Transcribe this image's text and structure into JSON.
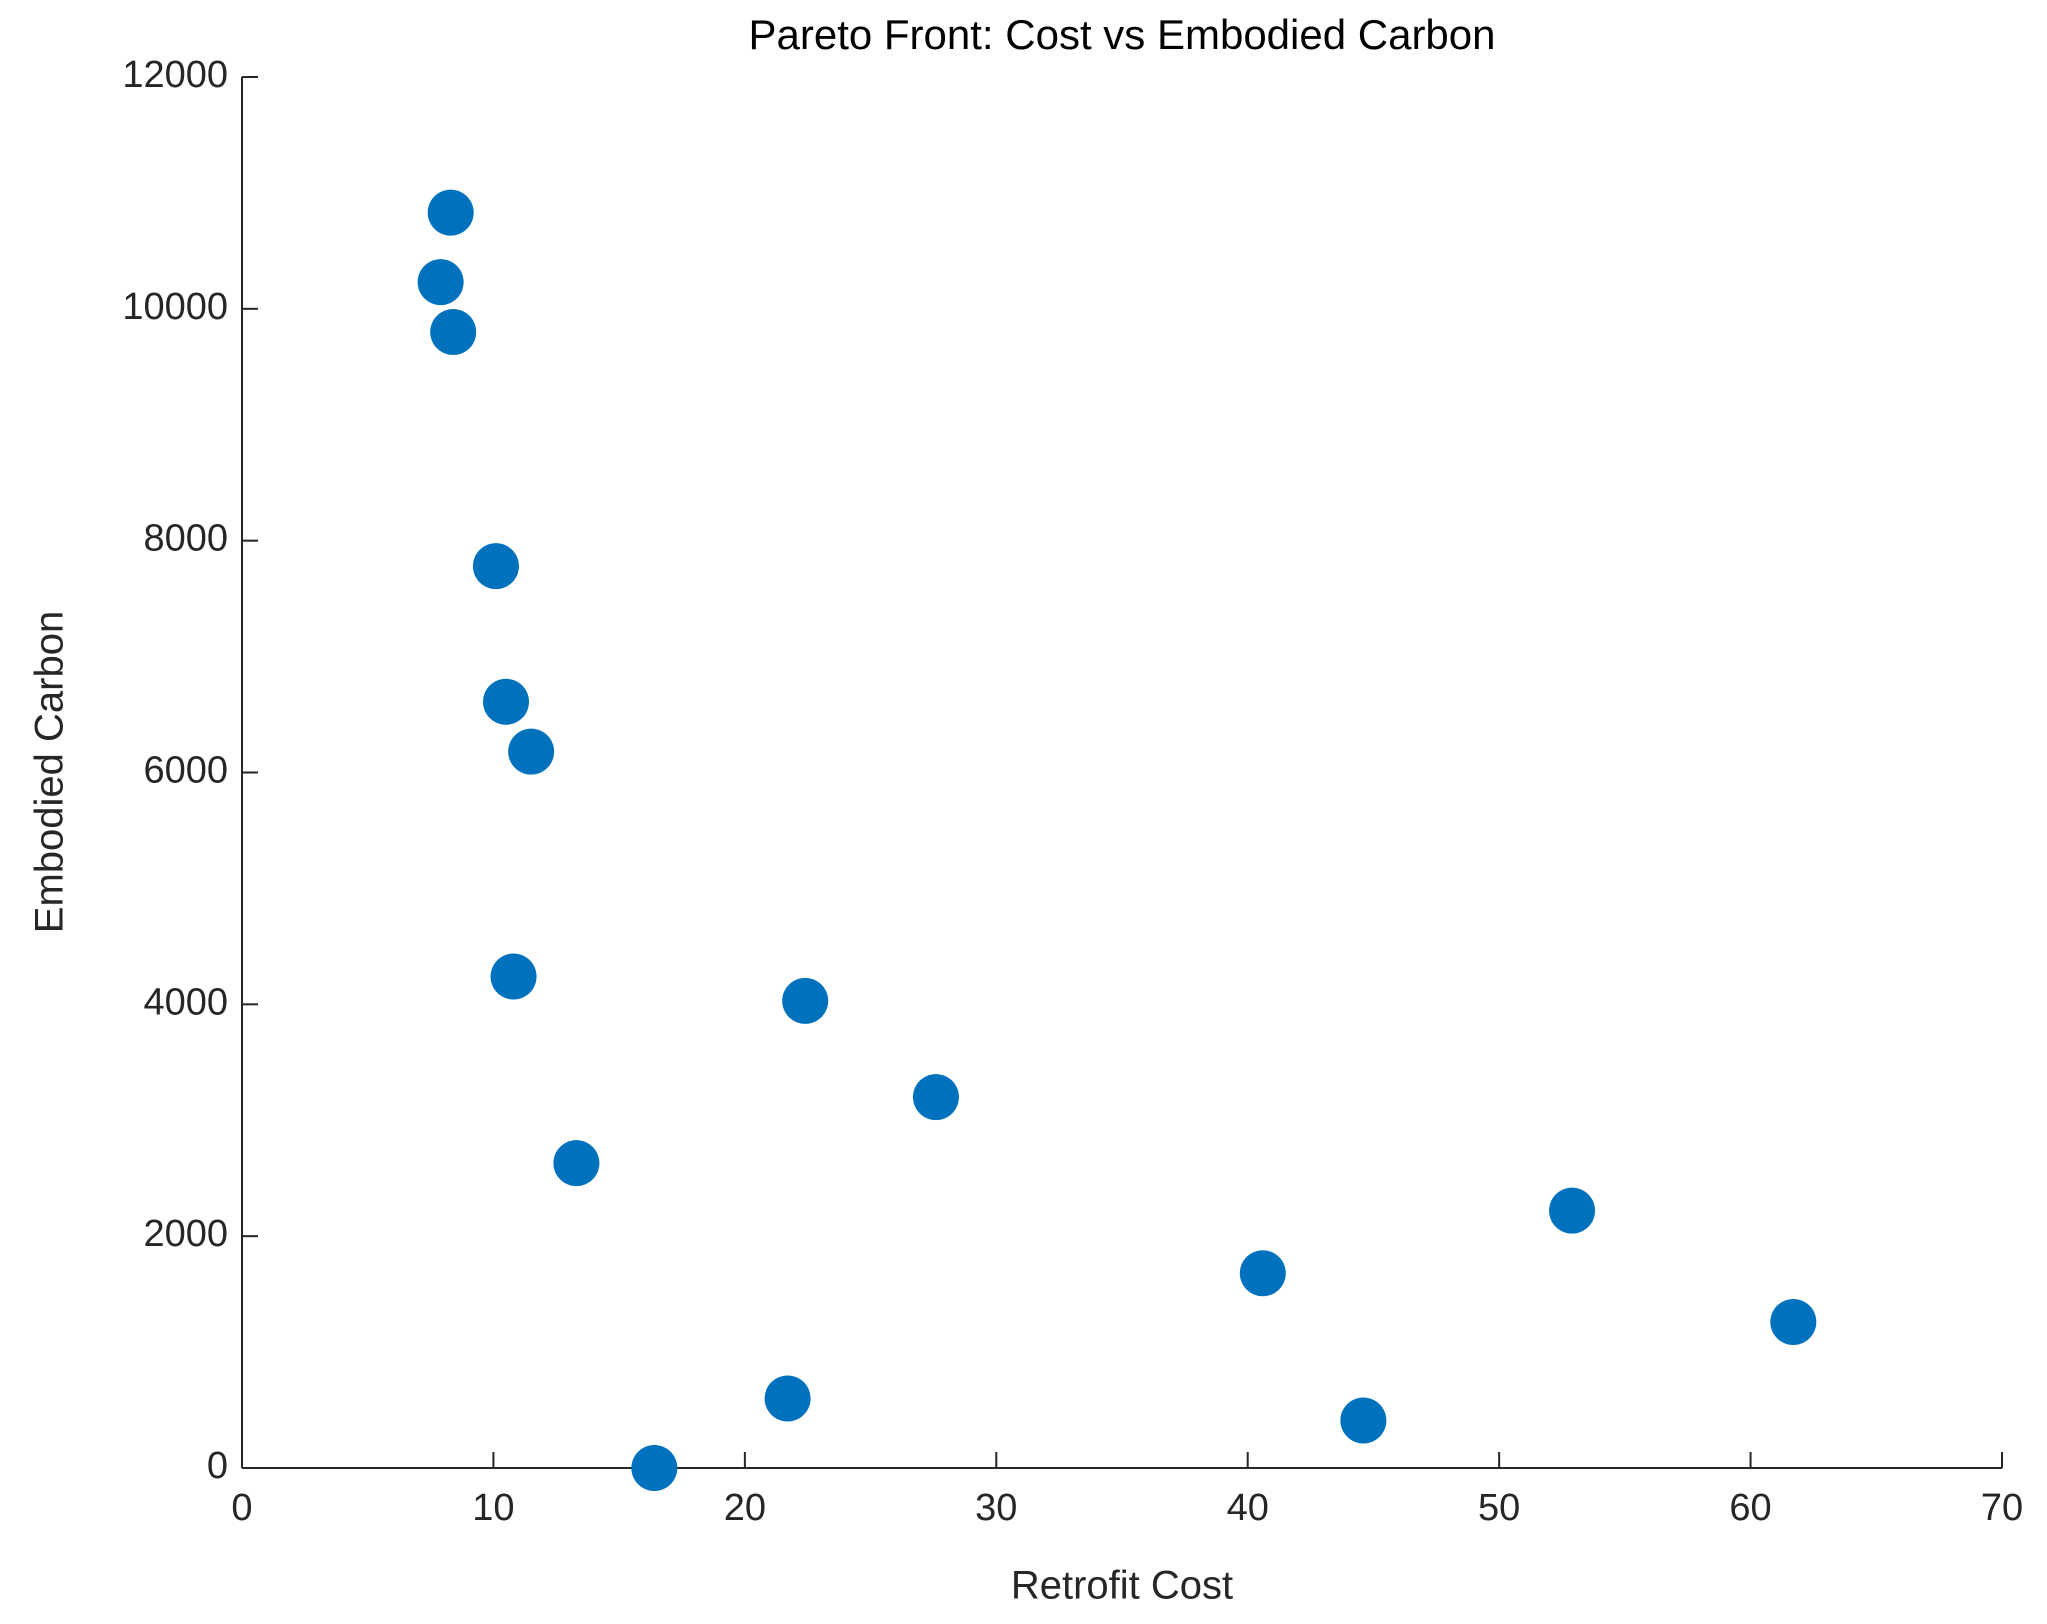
{
  "chart_data": {
    "type": "scatter",
    "title": "Pareto Front: Cost vs Embodied Carbon",
    "x_label": "Retrofit Cost",
    "y_label": "Embodied Carbon",
    "color": "#0072bd",
    "x": [
      8.3,
      7.9,
      8.4,
      10.1,
      10.5,
      11.5,
      10.8,
      22.4,
      27.6,
      13.3,
      52.9,
      40.6,
      61.7,
      21.7,
      44.6,
      16.4
    ],
    "values": [
      10830,
      10230,
      9800,
      7780,
      6610,
      6180,
      4240,
      4030,
      3200,
      2630,
      2220,
      1680,
      1260,
      600,
      410,
      0
    ],
    "xlim": [
      0,
      70
    ],
    "xticks": [
      0,
      10,
      20,
      30,
      40,
      50,
      60,
      70
    ],
    "ylim": [
      0,
      12000
    ],
    "yticks": [
      0,
      2000,
      4000,
      6000,
      8000,
      10000,
      12000
    ],
    "grid": false
  }
}
